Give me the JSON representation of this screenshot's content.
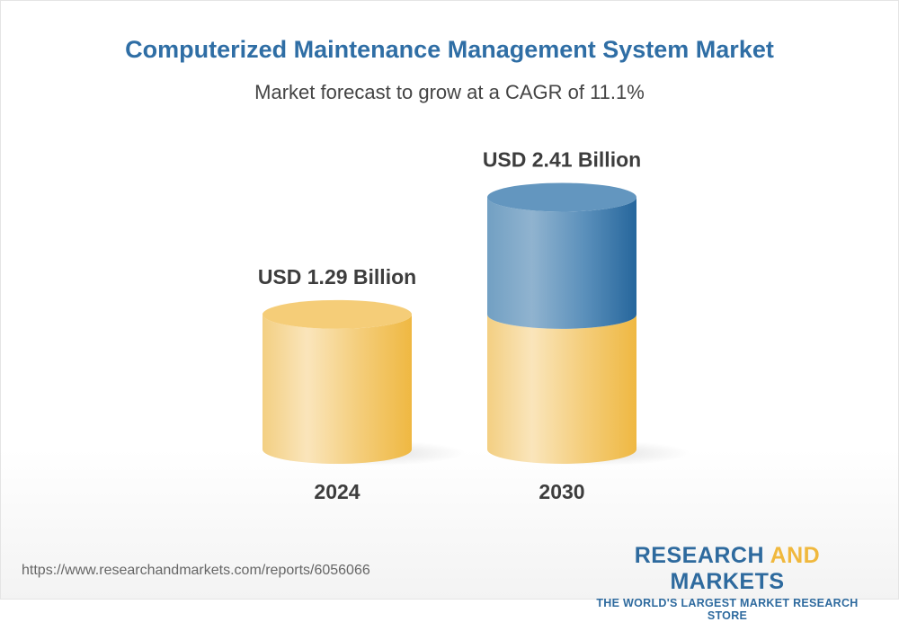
{
  "title": "Computerized Maintenance Management System Market",
  "subtitle": "Market forecast to grow at a CAGR of 11.1%",
  "chart_data": {
    "type": "bar",
    "style": "3d-cylinder",
    "categories": [
      "2024",
      "2030"
    ],
    "values": [
      1.29,
      2.41
    ],
    "data_labels": [
      "USD 1.29 Billion",
      "USD 2.41 Billion"
    ],
    "unit": "USD Billion",
    "colors": {
      "base": "#f0b94a",
      "growth": "#2d6a9f"
    }
  },
  "footer": {
    "url": "https://www.researchandmarkets.com/reports/6056066",
    "logo_part1": "RESEARCH ",
    "logo_part2": "AND",
    "logo_part3": " MARKETS",
    "tagline": "THE WORLD'S LARGEST MARKET RESEARCH STORE"
  }
}
